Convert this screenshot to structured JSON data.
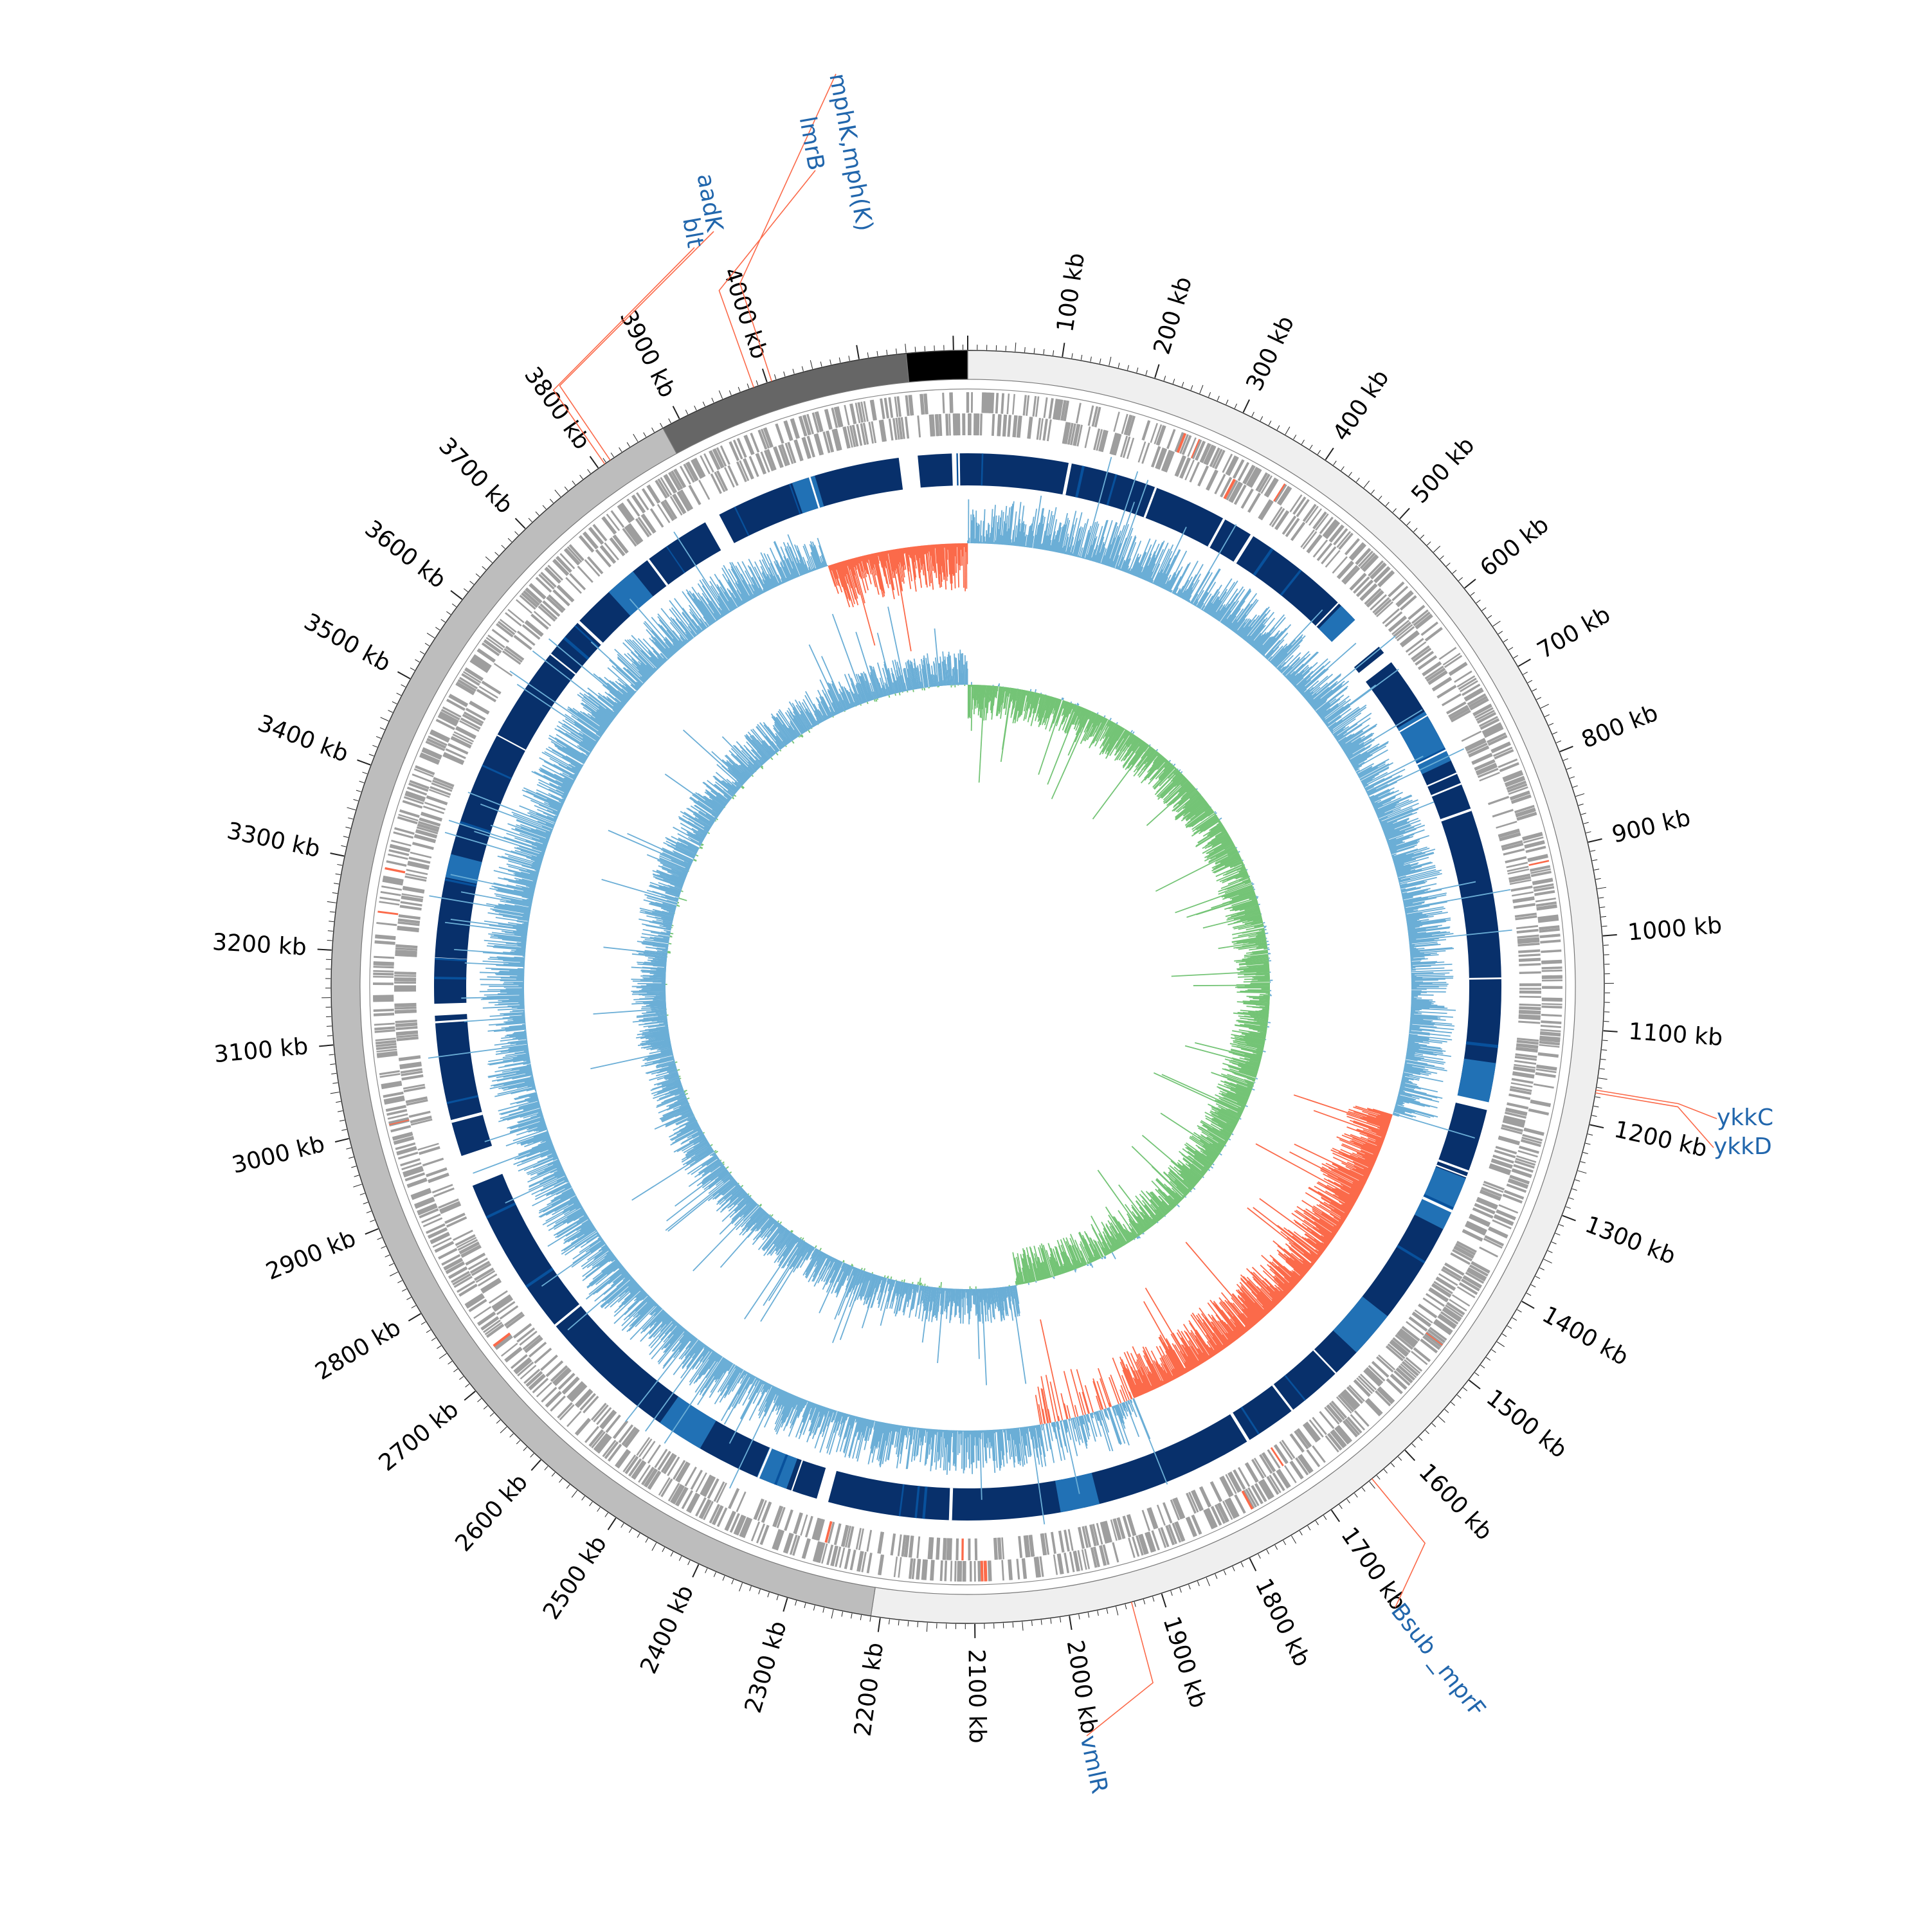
{
  "genome": {
    "total_kb": 4215,
    "tick_labels": [
      "100 kb",
      "200 kb",
      "300 kb",
      "400 kb",
      "500 kb",
      "600 kb",
      "700 kb",
      "800 kb",
      "900 kb",
      "1000 kb",
      "1100 kb",
      "1200 kb",
      "1300 kb",
      "1400 kb",
      "1500 kb",
      "1600 kb",
      "1700 kb",
      "1800 kb",
      "1900 kb",
      "2000 kb",
      "2100 kb",
      "2200 kb",
      "2300 kb",
      "2400 kb",
      "2500 kb",
      "2600 kb",
      "2700 kb",
      "2800 kb",
      "2900 kb",
      "3000 kb",
      "3100 kb",
      "3200 kb",
      "3300 kb",
      "3400 kb",
      "3500 kb",
      "3600 kb",
      "3700 kb",
      "3800 kb",
      "3900 kb",
      "4000 kb"
    ]
  },
  "genes": [
    {
      "label": "aadK",
      "kb": 3815
    },
    {
      "label": "blt",
      "kb": 3808
    },
    {
      "label": "mphK,mph(K)",
      "kb": 4005
    },
    {
      "label": "lmrB",
      "kb": 3985
    },
    {
      "label": "ykkC",
      "kb": 1163
    },
    {
      "label": "ykkD",
      "kb": 1166
    },
    {
      "label": "Bsub _mprF",
      "kb": 1646
    },
    {
      "label": "vmlR",
      "kb": 1933
    }
  ],
  "colors": {
    "contig_light": "#efefef",
    "contig_mid": "#bdbdbd",
    "contig_dark": "#666666",
    "contig_black": "#000000",
    "feature_gray": "#9e9e9e",
    "feature_red": "#fb6a4a",
    "blast_dark": "#08306b",
    "blast_mid": "#08519c",
    "blast_light": "#2171b5",
    "gc_blue": "#6baed6",
    "gc_light": "#9ecae1",
    "gc_red": "#fb6a4a",
    "skew_green": "#74c476",
    "skew_blue": "#6baed6",
    "gene_label": "#2166ac",
    "gene_line": "#fb6a4a"
  }
}
